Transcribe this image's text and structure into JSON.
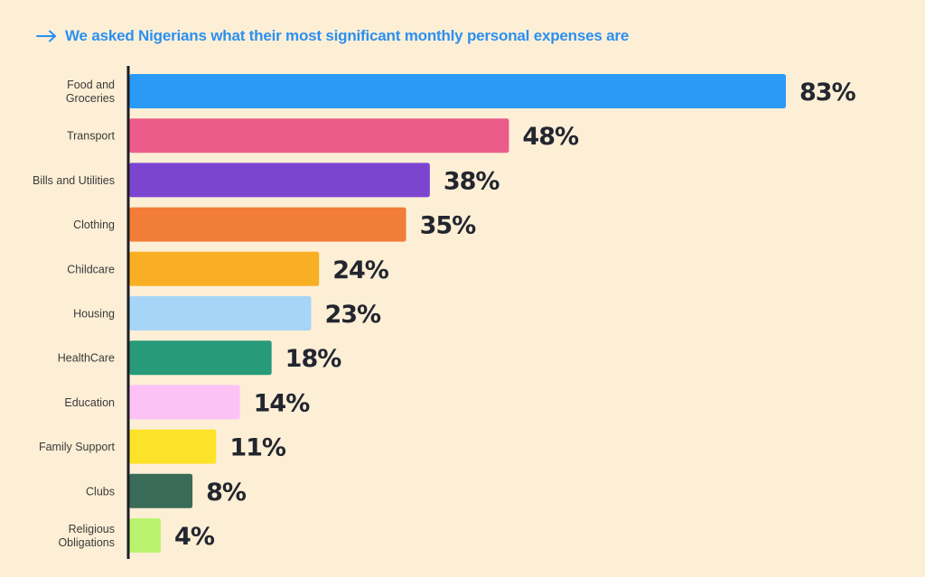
{
  "title": "We asked Nigerians what their most significant monthly personal expenses are",
  "title_icon": "arrow-right-icon",
  "colors": {
    "background": "#fdefd6",
    "title": "#2c90f0",
    "axis": "#1c1d24",
    "value_text": "#23262f"
  },
  "chart_data": {
    "type": "bar",
    "orientation": "horizontal",
    "title": "We asked Nigerians what their most significant monthly personal expenses are",
    "xlabel": "",
    "ylabel": "",
    "xlim": [
      0,
      100
    ],
    "unit": "%",
    "grid": false,
    "legend": "none",
    "categories": [
      "Food and Groceries",
      "Transport",
      "Bills and Utilities",
      "Clothing",
      "Childcare",
      "Housing",
      "HealthCare",
      "Education",
      "Family Support",
      "Clubs",
      "Religious Obligations"
    ],
    "category_lines": [
      [
        "Food and",
        "Groceries"
      ],
      [
        "Transport"
      ],
      [
        "Bills and Utilities"
      ],
      [
        "Clothing"
      ],
      [
        "Childcare"
      ],
      [
        "Housing"
      ],
      [
        "HealthCare"
      ],
      [
        "Education"
      ],
      [
        "Family Support"
      ],
      [
        "Clubs"
      ],
      [
        "Religious",
        "Obligations"
      ]
    ],
    "values": [
      83,
      48,
      38,
      35,
      24,
      23,
      18,
      14,
      11,
      8,
      4
    ],
    "value_labels": [
      "83%",
      "48%",
      "38%",
      "35%",
      "24%",
      "23%",
      "18%",
      "14%",
      "11%",
      "8%",
      "4%"
    ],
    "bar_colors": [
      "#2b9af7",
      "#ec5c8a",
      "#7c45d0",
      "#f27d38",
      "#f9af24",
      "#a6d5f7",
      "#279a7a",
      "#fcc2f6",
      "#fde22a",
      "#3a6a58",
      "#b9f36d"
    ]
  }
}
